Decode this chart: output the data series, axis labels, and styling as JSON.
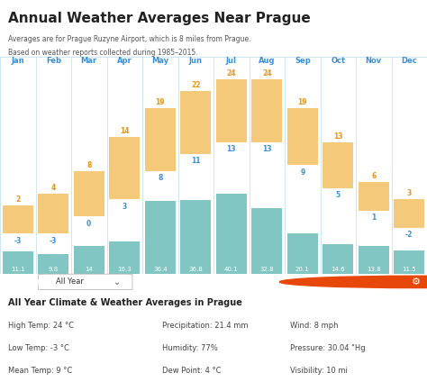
{
  "months": [
    "Jan",
    "Feb",
    "Mar",
    "Apr",
    "May",
    "Jun",
    "Jul",
    "Aug",
    "Sep",
    "Oct",
    "Nov",
    "Dec"
  ],
  "high_temps": [
    2,
    4,
    8,
    14,
    19,
    22,
    24,
    24,
    19,
    13,
    6,
    3
  ],
  "low_temps": [
    -3,
    -3,
    0,
    3,
    8,
    11,
    13,
    13,
    9,
    5,
    1,
    -2
  ],
  "precipitation": [
    11.1,
    9.8,
    14,
    16.3,
    36.4,
    36.8,
    40.1,
    32.8,
    20.1,
    14.6,
    13.8,
    11.5
  ],
  "bar_color_orange": "#F5C97A",
  "bar_color_teal": "#6BBCB8",
  "bg_color": "#FFFFFF",
  "chart_bg": "#F0F8FF",
  "header_bg": "#FFFFFF",
  "title": "Annual Weather Averages Near Prague",
  "subtitle1": "Averages are for Prague Ruzyne Airport, which is 8 miles from Prague.",
  "subtitle2": "Based on weather reports collected during 1985–2015.",
  "info_title": "All Year Climate & Weather Averages in Prague",
  "info_items": [
    [
      "High Temp: 24 °C",
      "Precipitation: 21.4 mm",
      "Wind: 8 mph"
    ],
    [
      "Low Temp: -3 °C",
      "Humidity: 77%",
      "Pressure: 30.04 \"Hg"
    ],
    [
      "Mean Temp: 9 °C",
      "Dew Point: 4 °C",
      "Visibility: 10 mi"
    ]
  ],
  "showing_bar_color": "#3A8FD9",
  "month_label_color": "#3A8FD9",
  "temp_high_label_color": "#E8941A",
  "temp_low_label_color": "#3A8FD9",
  "precip_label_color": "#FFFFFF",
  "grid_color": "#CCDDEE"
}
